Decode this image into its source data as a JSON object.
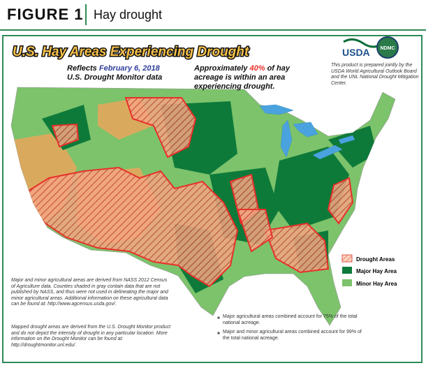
{
  "header": {
    "label": "FIGURE 1",
    "title": "Hay drought"
  },
  "map": {
    "title": "U.S. Hay Areas Experiencing Drought",
    "reflects": {
      "prefix": "Reflects",
      "date": "February 6, 2018",
      "source": "U.S. Drought Monitor data"
    },
    "statistic": {
      "prefix": "Approximately",
      "value": "40%",
      "suffix": "of hay acreage is within an area experiencing drought."
    },
    "logos": [
      "USDA",
      "NDMC"
    ],
    "credit": "This product is prepared jointly by the USDA World Agricultural Outlook Board and the UNL National Drought Mitigation Center.",
    "legend": [
      "Drought Areas",
      "Major Hay Area",
      "Minor Hay Area"
    ],
    "notes": [
      "Major and minor agricultural areas are derived from NASS 2012 Census of Agriculture data. Counties shaded in gray contain data that are not published by NASS, and thus were not used in delineating the major and minor agricultural areas. Additional information on these agricultural data can be found at: http://www.agcensus.usda.gov/.",
      "Mapped drought areas are derived from the U.S. Drought Monitor product and do not depict the intensity of drought in any particular location. More information on the Drought Monitor can be found at: http://droughtmonitor.unl.edu/."
    ],
    "bullets": [
      "Major agricultural areas combined account for 75% of the total national acreage.",
      "Major and minor agricultural areas combined account for 99% of the total national acreage."
    ]
  }
}
